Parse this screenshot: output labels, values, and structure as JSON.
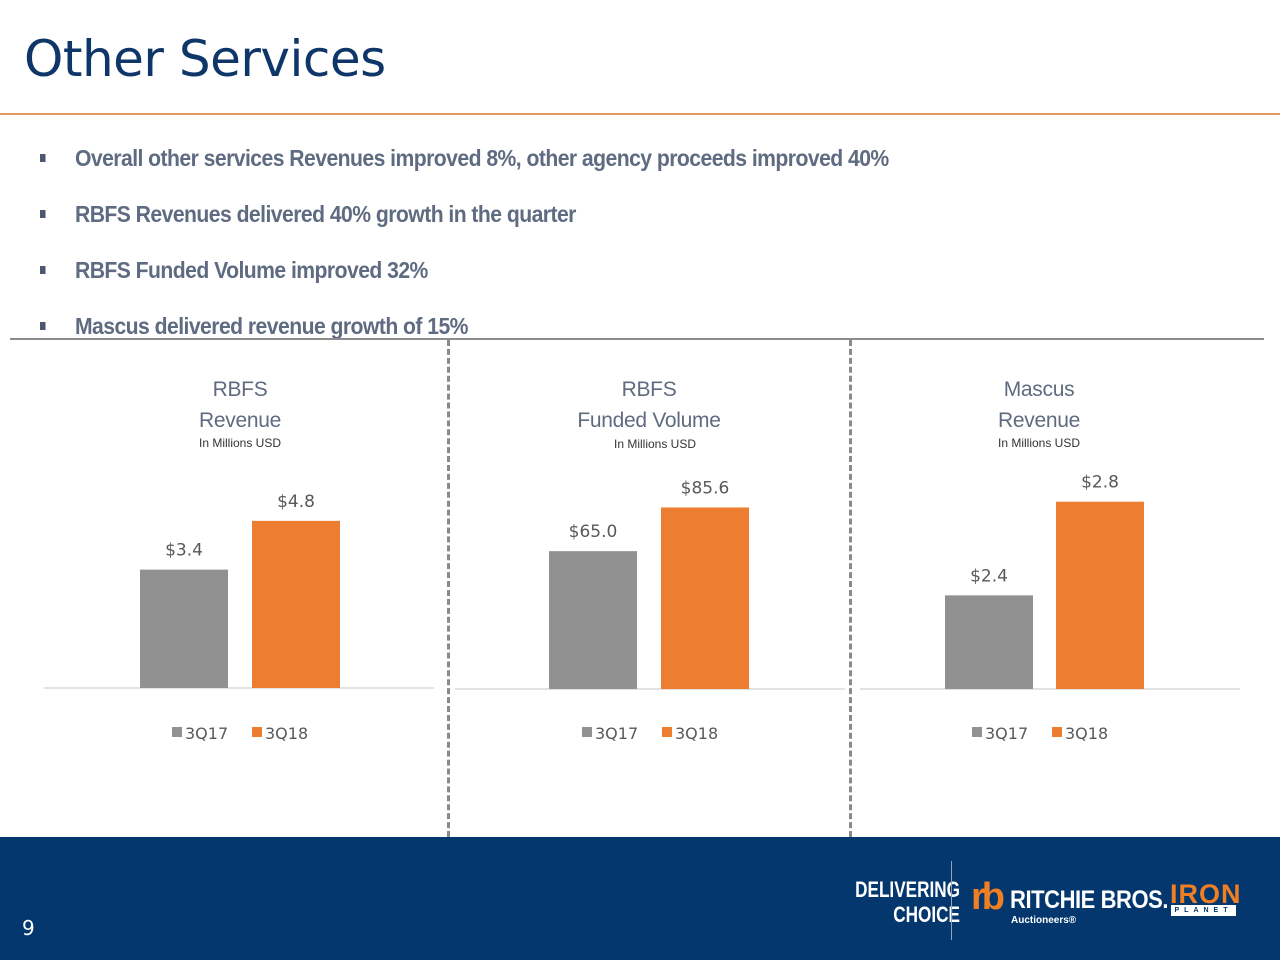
{
  "slide": {
    "title": "Other Services",
    "page_number": "9",
    "bullets": [
      "Overall other services Revenues improved 8%, other agency proceeds improved 40%",
      "RBFS Revenues delivered 40% growth in the quarter",
      "RBFS Funded Volume improved 32%",
      "Mascus delivered revenue growth of 15%"
    ],
    "colors": {
      "title": "#0e3668",
      "accent_rule": "#e39a5e",
      "series_3q17": "#919191",
      "series_3q18": "#ed7d31",
      "footer": "#03376e"
    },
    "footer": {
      "tagline_line1": "DELIVERING",
      "tagline_line2": "CHOICE",
      "rb_mark": "rb",
      "rb_name": "RITCHIE BROS.",
      "rb_sub": "Auctioneers®",
      "iron": "IRON",
      "planet": "PLANET"
    }
  },
  "panels": [
    {
      "title_line1": "RBFS",
      "title_line2": "Revenue",
      "subtitle": "In Millions USD"
    },
    {
      "title_line1": "RBFS",
      "title_line2": "Funded Volume",
      "subtitle": "In Millions USD"
    },
    {
      "title_line1": "Mascus",
      "title_line2": "Revenue",
      "subtitle": "In Millions USD"
    }
  ],
  "chart_data": [
    {
      "type": "bar",
      "title": "RBFS Revenue",
      "subtitle": "In Millions USD",
      "categories": [
        ""
      ],
      "series": [
        {
          "name": "3Q17",
          "values": [
            3.4
          ],
          "label": "$3.4"
        },
        {
          "name": "3Q18",
          "values": [
            4.8
          ],
          "label": "$4.8"
        }
      ],
      "ylim": [
        0,
        5.4
      ],
      "grid": false,
      "legend": "bottom"
    },
    {
      "type": "bar",
      "title": "RBFS Funded Volume",
      "subtitle": "In Millions USD",
      "categories": [
        ""
      ],
      "series": [
        {
          "name": "3Q17",
          "values": [
            65.0
          ],
          "label": "$65.0"
        },
        {
          "name": "3Q18",
          "values": [
            85.6
          ],
          "label": "$85.6"
        }
      ],
      "ylim": [
        0,
        91
      ],
      "grid": false,
      "legend": "bottom"
    },
    {
      "type": "bar",
      "title": "Mascus Revenue",
      "subtitle": "In Millions USD",
      "categories": [
        ""
      ],
      "series": [
        {
          "name": "3Q17",
          "values": [
            2.4
          ],
          "label": "$2.4"
        },
        {
          "name": "3Q18",
          "values": [
            2.8
          ],
          "label": "$2.8"
        }
      ],
      "ylim": [
        2.0,
        2.85
      ],
      "grid": false,
      "legend": "bottom"
    }
  ]
}
